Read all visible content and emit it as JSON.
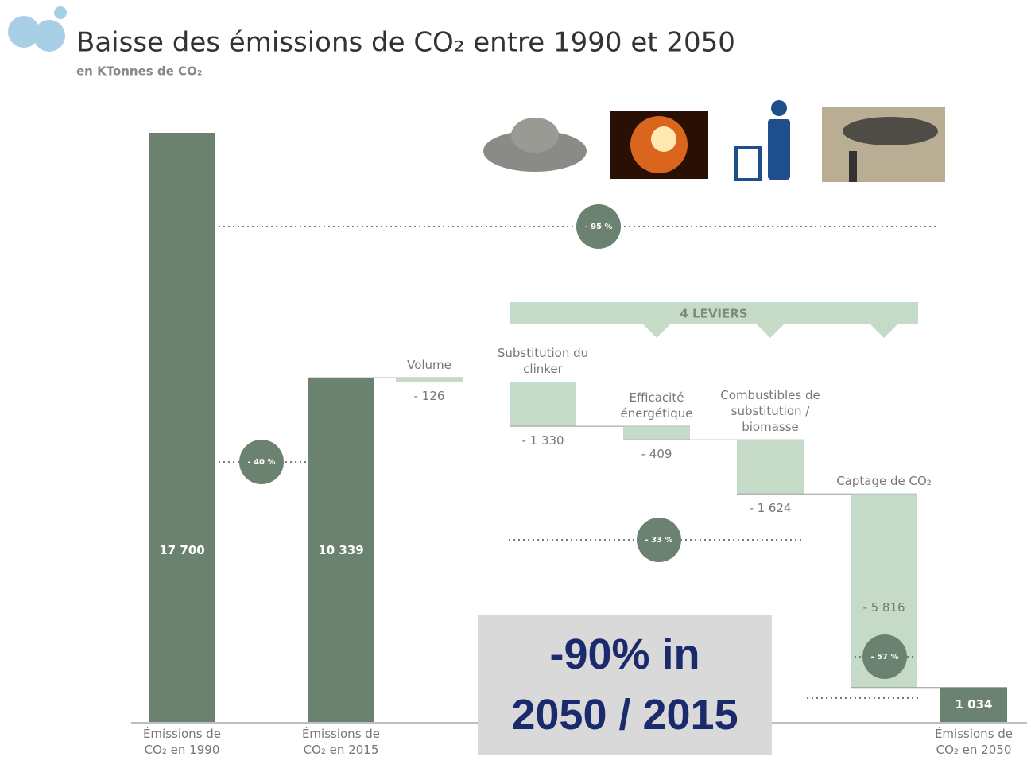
{
  "chart_data": {
    "type": "waterfall",
    "title": "Baisse des émissions de CO₂ entre 1990 et 2050",
    "subtitle": "en KTonnes de CO₂",
    "categories": [
      "Émissions de CO₂ en 1990",
      "Émissions de CO₂ en 2015",
      "Volume",
      "Substitution du clinker",
      "Efficacité énergétique",
      "Combustibles de substitution / biomasse",
      "Captage de CO₂",
      "Émissions de CO₂ en 2050"
    ],
    "values": [
      17700,
      10339,
      -126,
      -1330,
      -409,
      -1624,
      -5816,
      1034
    ],
    "value_labels": [
      "17 700",
      "10 339",
      "- 126",
      "- 1 330",
      "- 409",
      "- 1 624",
      "- 5 816",
      "1 034"
    ],
    "color": "#6b8270",
    "decrease_color": "#c5dbc7",
    "annotations": [
      "- 95 %",
      "- 40 %",
      "- 33 %",
      "- 57 %"
    ],
    "group_label": "4 LEVIERS",
    "callout": [
      "-90% in",
      "2050 / 2015"
    ]
  }
}
